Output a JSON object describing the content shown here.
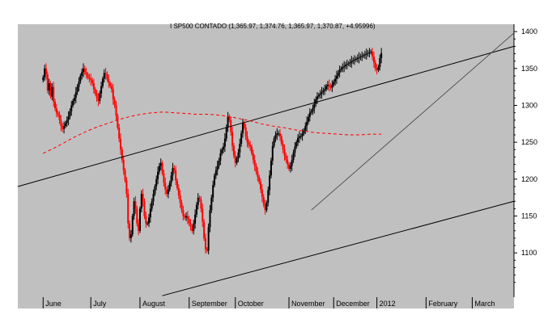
{
  "chart_data": {
    "type": "candlestick",
    "title": "I SP500 CONTADO (1,365.97, 1,374.76, 1,365.97, 1,370.87, +4.95996)",
    "ylim": [
      1040,
      1410
    ],
    "y_ticks": [
      1100,
      1150,
      1200,
      1250,
      1300,
      1350,
      1400
    ],
    "y_tick_labels": [
      "1100",
      "1150",
      "1200",
      "1250",
      "1300",
      "1350",
      "1400"
    ],
    "x_labels": [
      {
        "label": "June",
        "day": 0
      },
      {
        "label": "July",
        "day": 32
      },
      {
        "label": "August",
        "day": 65
      },
      {
        "label": "September",
        "day": 98
      },
      {
        "label": "October",
        "day": 129
      },
      {
        "label": "November",
        "day": 165
      },
      {
        "label": "December",
        "day": 195
      },
      {
        "label": "2012",
        "day": 224
      },
      {
        "label": "February",
        "day": 257
      },
      {
        "label": "March",
        "day": 288
      }
    ],
    "x_range": [
      -17,
      316
    ],
    "grid": false,
    "colors": {
      "background": "#c0c0c0",
      "up": "#000000",
      "down": "#ff0000",
      "moving_average": "#ff0000",
      "trendline": "#000000"
    },
    "close": [
      1338,
      1350,
      1342,
      1320,
      1330,
      1312,
      1325,
      1305,
      1296,
      1290,
      1287,
      1280,
      1272,
      1268,
      1272,
      1276,
      1280,
      1285,
      1292,
      1300,
      1306,
      1310,
      1318,
      1325,
      1332,
      1340,
      1345,
      1350,
      1345,
      1342,
      1338,
      1336,
      1334,
      1330,
      1322,
      1316,
      1310,
      1306,
      1316,
      1326,
      1336,
      1344,
      1342,
      1336,
      1330,
      1326,
      1322,
      1308,
      1300,
      1286,
      1270,
      1255,
      1240,
      1226,
      1212,
      1198,
      1180,
      1140,
      1120,
      1125,
      1150,
      1170,
      1160,
      1140,
      1130,
      1160,
      1180,
      1170,
      1150,
      1140,
      1140,
      1148,
      1160,
      1170,
      1180,
      1190,
      1200,
      1210,
      1218,
      1222,
      1208,
      1195,
      1186,
      1180,
      1186,
      1195,
      1205,
      1215,
      1212,
      1198,
      1188,
      1178,
      1168,
      1158,
      1150,
      1148,
      1150,
      1146,
      1140,
      1136,
      1130,
      1140,
      1152,
      1165,
      1175,
      1172,
      1160,
      1142,
      1120,
      1105,
      1103,
      1135,
      1158,
      1175,
      1192,
      1205,
      1212,
      1218,
      1225,
      1235,
      1240,
      1244,
      1255,
      1270,
      1285,
      1280,
      1264,
      1245,
      1232,
      1222,
      1228,
      1236,
      1248,
      1262,
      1276,
      1270,
      1258,
      1250,
      1246,
      1244,
      1235,
      1226,
      1218,
      1210,
      1203,
      1196,
      1186,
      1176,
      1166,
      1158,
      1168,
      1185,
      1205,
      1225,
      1245,
      1255,
      1260,
      1262,
      1262,
      1258,
      1248,
      1240,
      1232,
      1226,
      1220,
      1214,
      1218,
      1226,
      1236,
      1244,
      1250,
      1256,
      1258,
      1258,
      1262,
      1266,
      1272,
      1278,
      1284,
      1290,
      1292,
      1296,
      1302,
      1308,
      1312,
      1314,
      1316,
      1318,
      1320,
      1322,
      1326,
      1328,
      1326,
      1324,
      1328,
      1332,
      1336,
      1340,
      1344,
      1348,
      1350,
      1352,
      1353,
      1355,
      1356,
      1357,
      1358,
      1360,
      1361,
      1362,
      1363,
      1364,
      1365,
      1366,
      1367,
      1368,
      1369,
      1370,
      1371,
      1372,
      1373,
      1366,
      1358,
      1350,
      1348,
      1352,
      1364,
      1370.87
    ],
    "moving_average": [
      1235,
      1242,
      1250,
      1258,
      1265,
      1271,
      1276,
      1281,
      1285,
      1288,
      1290,
      1291,
      1290,
      1289,
      1288,
      1288,
      1287,
      1285,
      1282,
      1279,
      1275,
      1272,
      1270,
      1267,
      1265,
      1263,
      1262,
      1261,
      1260,
      1260,
      1261,
      1261
    ],
    "channel_upper": {
      "day": [
        -17,
        316
      ],
      "value": [
        1190,
        1380
      ]
    },
    "channel_lower": {
      "day": [
        80,
        316
      ],
      "value": [
        1042,
        1170
      ]
    },
    "support_line": {
      "day": [
        180,
        316
      ],
      "value": [
        1158,
        1398
      ]
    }
  }
}
